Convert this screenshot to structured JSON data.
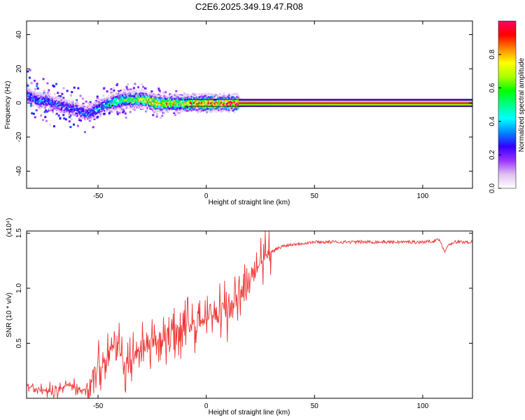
{
  "chart_data": [
    {
      "type": "heatmap",
      "title": "C2E6.2025.349.19.47.R08",
      "xlabel": "Height of straight line (km)",
      "ylabel": "Frequency (Hz)",
      "xlim": [
        -83,
        123
      ],
      "ylim": [
        -50,
        48
      ],
      "xticks": [
        -50,
        0,
        50,
        100
      ],
      "xtick_labels": [
        "-50",
        "0",
        "50",
        "100"
      ],
      "yticks": [
        -40,
        -20,
        0,
        20,
        40
      ],
      "ytick_labels": [
        "-40",
        "-20",
        "0",
        "20",
        "40"
      ],
      "colorbar": {
        "label": "Normalized spectral amplitude",
        "range": [
          0,
          1
        ],
        "ticks": [
          0.0,
          0.2,
          0.4,
          0.6,
          0.8
        ],
        "tick_labels": [
          "0.0",
          "0.2",
          "0.4",
          "0.6",
          "0.8"
        ],
        "colors": [
          "#ffffff",
          "#e0c0f0",
          "#9933ff",
          "#3300ff",
          "#0088ff",
          "#00ffff",
          "#00ff88",
          "#00ff00",
          "#aaff00",
          "#ffff00",
          "#ff8800",
          "#ff0000",
          "#ff0066"
        ]
      },
      "ridge": {
        "x": [
          -83,
          -80,
          -77,
          -74,
          -71,
          -68,
          -65,
          -62,
          -59,
          -56,
          -53,
          -50,
          -47,
          -44,
          -41,
          -38,
          -35,
          -32,
          -29,
          -26,
          -23,
          -20,
          -17,
          -14,
          -11,
          -8,
          -5,
          0,
          5,
          10,
          20,
          40,
          60,
          80,
          100,
          123
        ],
        "y": [
          5,
          3,
          1,
          2,
          0,
          -1,
          -2,
          -3,
          -4,
          -6,
          -5,
          -3,
          -1,
          0,
          1,
          2,
          2,
          2,
          2,
          1,
          0,
          0,
          0,
          0,
          0,
          0,
          0,
          0,
          0,
          0,
          0,
          0,
          0,
          0,
          0,
          0
        ],
        "intensity": [
          0.3,
          0.35,
          0.35,
          0.35,
          0.3,
          0.3,
          0.3,
          0.3,
          0.3,
          0.3,
          0.35,
          0.35,
          0.4,
          0.5,
          0.55,
          0.6,
          0.65,
          0.7,
          0.7,
          0.75,
          0.8,
          0.8,
          0.8,
          0.75,
          0.7,
          0.85,
          0.9,
          0.9,
          0.9,
          0.95,
          0.95,
          0.97,
          0.98,
          0.98,
          0.98,
          0.98
        ]
      }
    },
    {
      "type": "line",
      "xlabel": "Height of straight line (km)",
      "ylabel": "SNR (10 * v/v)",
      "scale_label": "(x10⁴)",
      "xlim": [
        -83,
        123
      ],
      "ylim": [
        0,
        1.52
      ],
      "xticks": [
        -50,
        0,
        50,
        100
      ],
      "xtick_labels": [
        "-50",
        "0",
        "50",
        "100"
      ],
      "yticks": [
        0.5,
        1.0,
        1.5
      ],
      "ytick_labels": [
        "0.5",
        "1.0",
        "1.5"
      ],
      "series": [
        {
          "name": "SNR",
          "color": "#ee3333",
          "x": [
            -83,
            -78,
            -73,
            -68,
            -64,
            -60,
            -56,
            -54,
            -52,
            -50,
            -48,
            -46,
            -44,
            -42,
            -40,
            -38,
            -36,
            -34,
            -32,
            -30,
            -28,
            -26,
            -24,
            -22,
            -20,
            -18,
            -16,
            -14,
            -12,
            -10,
            -8,
            -6,
            -4,
            -2,
            0,
            2,
            4,
            6,
            8,
            10,
            12,
            14,
            16,
            18,
            20,
            22,
            24,
            26,
            28,
            30,
            32,
            35,
            40,
            45,
            50,
            60,
            70,
            80,
            90,
            100,
            105,
            108,
            110,
            112,
            115,
            120,
            123
          ],
          "y": [
            0.12,
            0.08,
            0.06,
            0.08,
            0.12,
            0.1,
            0.05,
            0.18,
            0.2,
            0.25,
            0.3,
            0.38,
            0.45,
            0.5,
            0.42,
            0.35,
            0.3,
            0.33,
            0.36,
            0.4,
            0.45,
            0.42,
            0.48,
            0.55,
            0.5,
            0.56,
            0.6,
            0.58,
            0.62,
            0.65,
            0.68,
            0.66,
            0.72,
            0.7,
            0.75,
            0.78,
            0.76,
            0.8,
            0.82,
            0.7,
            0.85,
            0.88,
            0.9,
            1.0,
            1.08,
            1.15,
            1.2,
            1.25,
            1.3,
            1.33,
            1.35,
            1.38,
            1.4,
            1.41,
            1.42,
            1.42,
            1.42,
            1.42,
            1.42,
            1.42,
            1.43,
            1.44,
            1.33,
            1.4,
            1.42,
            1.42,
            1.42
          ]
        }
      ]
    }
  ]
}
